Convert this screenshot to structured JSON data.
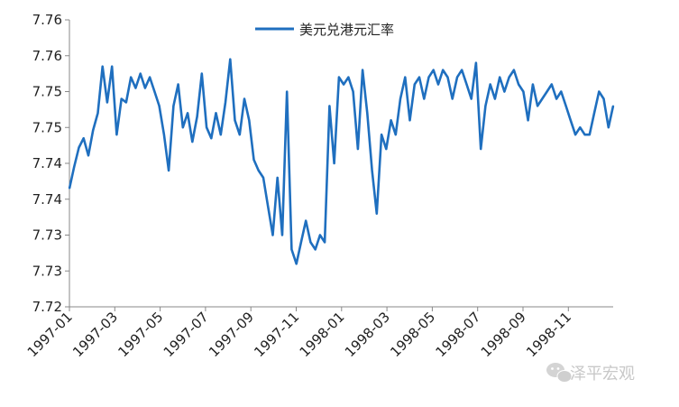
{
  "chart_data": {
    "type": "line",
    "title": "",
    "xlabel": "",
    "ylabel": "",
    "legend_position": "top-center",
    "grid": false,
    "y_tick_labels": [
      "7.76",
      "7.76",
      "7.75",
      "7.75",
      "7.74",
      "7.74",
      "7.73",
      "7.73",
      "7.72"
    ],
    "y_axis_value_range": [
      7.72,
      7.76
    ],
    "x_tick_labels": [
      "1997-01",
      "1997-03",
      "1997-05",
      "1997-07",
      "1997-09",
      "1997-11",
      "1998-01",
      "1998-03",
      "1998-05",
      "1998-07",
      "1998-09",
      "1998-11"
    ],
    "series": [
      {
        "name": "美元兑港元汇率",
        "color": "#1f6fbf",
        "x": [
          "1997-01",
          "1997-01",
          "1997-01",
          "1997-02",
          "1997-02",
          "1997-02",
          "1997-02",
          "1997-02",
          "1997-02",
          "1997-03",
          "1997-03",
          "1997-03",
          "1997-03",
          "1997-03",
          "1997-04",
          "1997-04",
          "1997-04",
          "1997-04",
          "1997-05",
          "1997-05",
          "1997-05",
          "1997-05",
          "1997-05",
          "1997-06",
          "1997-06",
          "1997-06",
          "1997-06",
          "1997-07",
          "1997-07",
          "1997-07",
          "1997-07",
          "1997-07",
          "1997-08",
          "1997-08",
          "1997-08",
          "1997-08",
          "1997-08",
          "1997-09",
          "1997-09",
          "1997-09",
          "1997-09",
          "1997-10",
          "1997-10",
          "1997-10",
          "1997-10",
          "1997-10",
          "1997-10",
          "1997-10",
          "1997-10",
          "1997-11",
          "1997-11",
          "1997-11",
          "1997-11",
          "1997-11",
          "1997-12",
          "1997-12",
          "1997-12",
          "1997-12",
          "1998-01",
          "1998-01",
          "1998-01",
          "1998-01",
          "1998-01",
          "1998-02",
          "1998-02",
          "1998-02",
          "1998-02",
          "1998-02",
          "1998-03",
          "1998-03",
          "1998-03",
          "1998-03",
          "1998-03",
          "1998-04",
          "1998-04",
          "1998-04",
          "1998-04",
          "1998-05",
          "1998-05",
          "1998-05",
          "1998-05",
          "1998-06",
          "1998-06",
          "1998-06",
          "1998-06",
          "1998-06",
          "1998-06",
          "1998-07",
          "1998-07",
          "1998-07",
          "1998-07",
          "1998-08",
          "1998-08",
          "1998-08",
          "1998-08",
          "1998-08",
          "1998-09",
          "1998-09",
          "1998-09",
          "1998-09",
          "1998-09",
          "1998-10",
          "1998-10",
          "1998-10",
          "1998-10",
          "1998-11",
          "1998-11",
          "1998-11",
          "1998-11",
          "1998-11",
          "1998-12",
          "1998-12",
          "1998-12",
          "1998-12",
          "1998-12",
          "1998-12"
        ],
        "values": [
          7.7365,
          7.7395,
          7.7422,
          7.7435,
          7.7411,
          7.7446,
          7.747,
          7.7535,
          7.7485,
          7.7535,
          7.744,
          7.749,
          7.7485,
          7.752,
          7.7505,
          7.7525,
          7.7505,
          7.752,
          7.75,
          7.748,
          7.744,
          7.739,
          7.748,
          7.751,
          7.745,
          7.747,
          7.743,
          7.7465,
          7.7525,
          7.745,
          7.7435,
          7.747,
          7.744,
          7.7485,
          7.7545,
          7.746,
          7.744,
          7.749,
          7.746,
          7.7405,
          7.739,
          7.738,
          7.734,
          7.73,
          7.738,
          7.73,
          7.75,
          7.728,
          7.726,
          7.729,
          7.732,
          7.729,
          7.728,
          7.73,
          7.729,
          7.748,
          7.74,
          7.752,
          7.751,
          7.752,
          7.75,
          7.742,
          7.753,
          7.747,
          7.739,
          7.733,
          7.744,
          7.742,
          7.746,
          7.744,
          7.749,
          7.752,
          7.746,
          7.751,
          7.752,
          7.749,
          7.752,
          7.753,
          7.751,
          7.753,
          7.752,
          7.749,
          7.752,
          7.753,
          7.751,
          7.749,
          7.754,
          7.742,
          7.748,
          7.751,
          7.749,
          7.752,
          7.75,
          7.752,
          7.753,
          7.751,
          7.75,
          7.746,
          7.751,
          7.748,
          7.749,
          7.75,
          7.751,
          7.749,
          7.75,
          7.748,
          7.746,
          7.744,
          7.745,
          7.744,
          7.744,
          7.747,
          7.75,
          7.749,
          7.745,
          7.748
        ]
      }
    ]
  },
  "watermark": {
    "text": "泽平宏观",
    "icon": "wechat-icon"
  }
}
